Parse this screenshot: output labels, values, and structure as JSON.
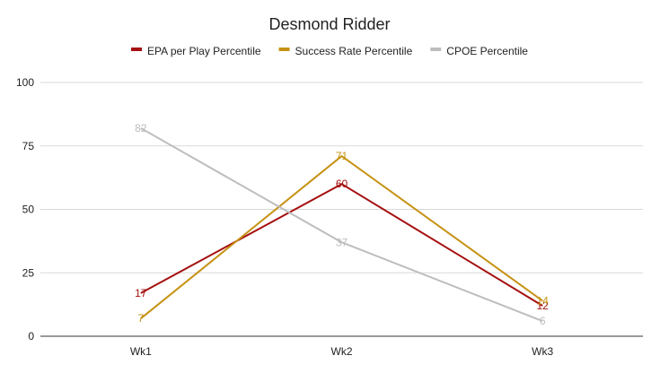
{
  "chart_data": {
    "type": "line",
    "title": "Desmond Ridder",
    "categories": [
      "Wk1",
      "Wk2",
      "Wk3"
    ],
    "ylim": [
      0,
      100
    ],
    "yticks": [
      0,
      25,
      50,
      75,
      100
    ],
    "grid": true,
    "legend_position": "top",
    "series": [
      {
        "name": "EPA per Play Percentile",
        "color": "#a50f0f",
        "values": [
          17,
          60,
          12
        ]
      },
      {
        "name": "Success Rate Percentile",
        "color": "#c69214",
        "values": [
          7,
          71,
          14
        ]
      },
      {
        "name": "CPOE Percentile",
        "color": "#bdbdbd",
        "values": [
          82,
          37,
          6
        ]
      }
    ]
  }
}
